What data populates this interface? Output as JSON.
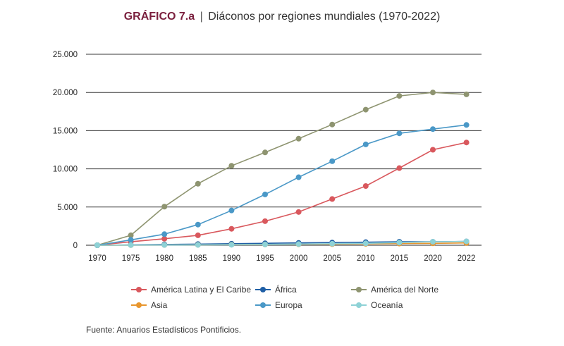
{
  "title": {
    "prefix": "GRÁFICO 7.a",
    "separator": "|",
    "text": "Diáconos por regiones mundiales (1970-2022)"
  },
  "source_note": "Fuente: Anuarios Estadísticos Pontificios.",
  "chart_data": {
    "type": "line",
    "title": "Diáconos por regiones mundiales (1970-2022)",
    "x": [
      "1970",
      "1975",
      "1980",
      "1985",
      "1990",
      "1995",
      "2000",
      "2005",
      "2010",
      "2015",
      "2020",
      "2022"
    ],
    "ylim": [
      0,
      25000
    ],
    "yticks": [
      {
        "value": 0,
        "label": "0"
      },
      {
        "value": 5000,
        "label": "5.000"
      },
      {
        "value": 10000,
        "label": "10.000"
      },
      {
        "value": 15000,
        "label": "15.000"
      },
      {
        "value": 20000,
        "label": "20.000"
      },
      {
        "value": 25000,
        "label": "25.000"
      }
    ],
    "grid": true,
    "legend_position": "bottom",
    "series": [
      {
        "name": "América Latina y El Caribe",
        "color": "#d9585d",
        "values": [
          0,
          450,
          850,
          1300,
          2150,
          3150,
          4350,
          6050,
          7750,
          10100,
          12500,
          13450
        ]
      },
      {
        "name": "África",
        "color": "#1f5fa6",
        "values": [
          0,
          50,
          100,
          150,
          200,
          250,
          300,
          350,
          400,
          450,
          450,
          500
        ]
      },
      {
        "name": "América del Norte",
        "color": "#8e9470",
        "values": [
          0,
          1300,
          5050,
          8050,
          10400,
          12150,
          13950,
          15800,
          17750,
          19550,
          20000,
          19750
        ]
      },
      {
        "name": "Asia",
        "color": "#e8962e",
        "values": [
          0,
          20,
          30,
          50,
          80,
          100,
          120,
          150,
          180,
          220,
          250,
          300
        ]
      },
      {
        "name": "Europa",
        "color": "#4a98c7",
        "values": [
          0,
          700,
          1450,
          2700,
          4550,
          6650,
          8900,
          11000,
          13200,
          14650,
          15200,
          15750
        ]
      },
      {
        "name": "Oceanía",
        "color": "#8ed2d6",
        "values": [
          0,
          20,
          30,
          40,
          60,
          100,
          150,
          200,
          250,
          350,
          450,
          500
        ]
      }
    ]
  }
}
